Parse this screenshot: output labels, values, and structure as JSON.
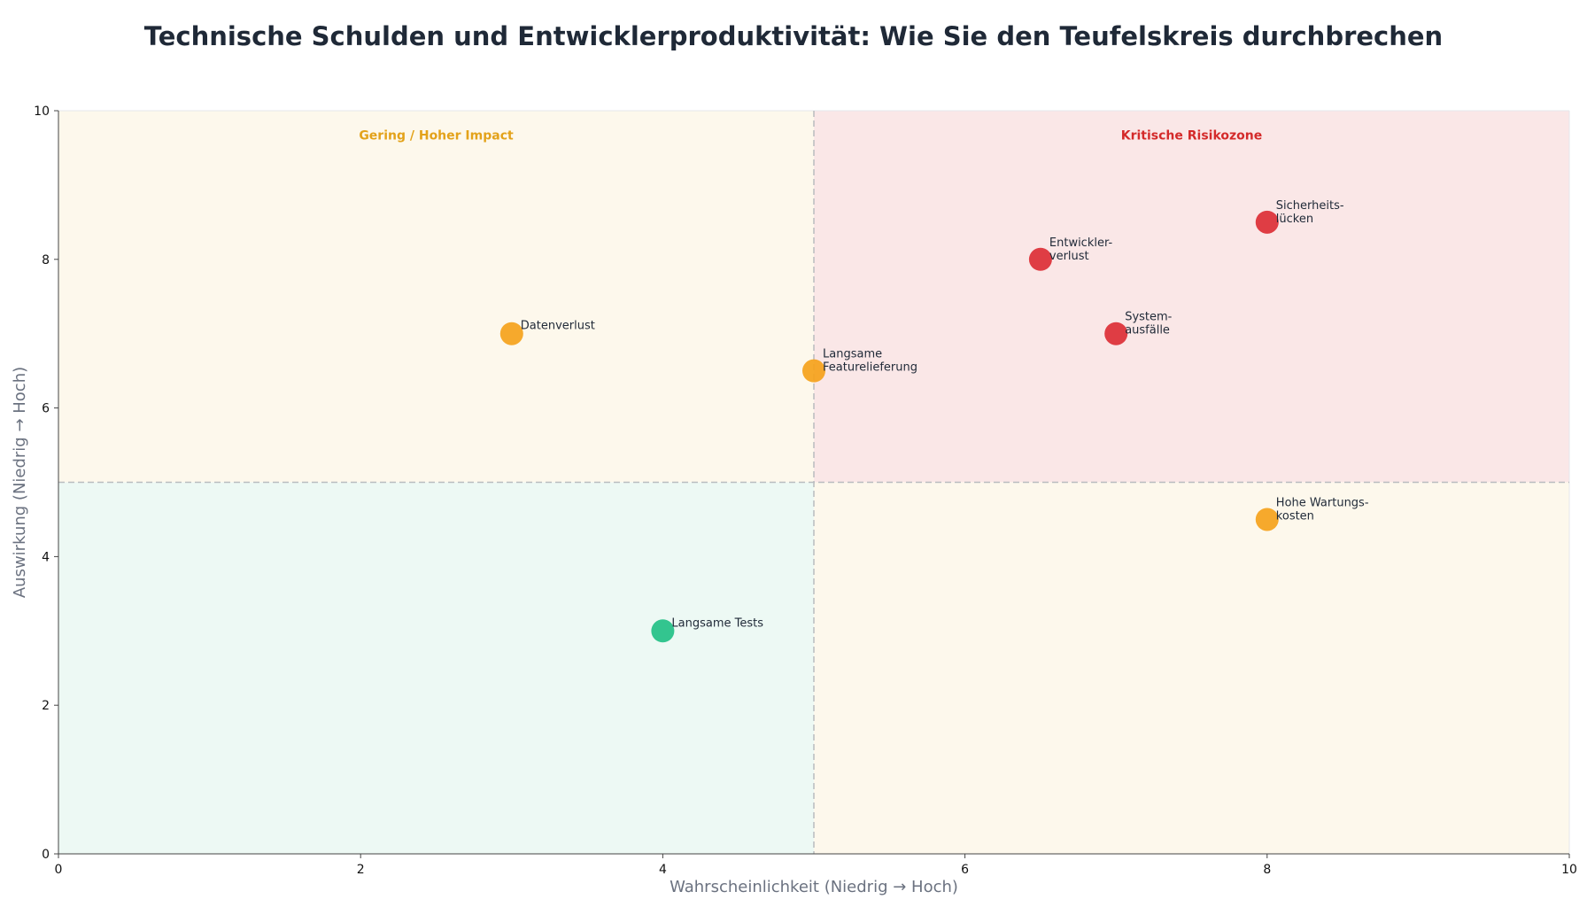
{
  "colors": {
    "critical": "#dc2f36",
    "medium": "#f5a21b",
    "low": "#23c085",
    "quad_critical_bg": "#fae7e7",
    "quad_medium_bg": "#fdf8ec",
    "quad_low_bg": "#edf9f4",
    "quad_label_medium": "#e3a21a",
    "quad_label_critical": "#d42a2a"
  },
  "chart_data": {
    "type": "scatter",
    "title": "Technische Schulden und Entwicklerproduktivität: Wie Sie den Teufelskreis durchbrechen",
    "xlabel": "Wahrscheinlichkeit (Niedrig → Hoch)",
    "ylabel": "Auswirkung (Niedrig → Hoch)",
    "xlim": [
      0,
      10
    ],
    "ylim": [
      0,
      10
    ],
    "xticks": [
      0,
      2,
      4,
      6,
      8,
      10
    ],
    "yticks": [
      0,
      2,
      4,
      6,
      8,
      10
    ],
    "threshold": {
      "x": 5,
      "y": 5
    },
    "grid": false,
    "quadrant_labels": [
      {
        "text": "Gering / Hoher Impact",
        "x": 2.5,
        "y": 9.67,
        "color_key": "quad_label_medium"
      },
      {
        "text": "Kritische Risikozone",
        "x": 7.5,
        "y": 9.67,
        "color_key": "quad_label_critical"
      }
    ],
    "points": [
      {
        "label_lines": [
          "Sicherheits-",
          "lücken"
        ],
        "x": 8.0,
        "y": 8.5,
        "level": "critical"
      },
      {
        "label_lines": [
          "Entwickler-",
          "verlust"
        ],
        "x": 6.5,
        "y": 8.0,
        "level": "critical"
      },
      {
        "label_lines": [
          "System-",
          "ausfälle"
        ],
        "x": 7.0,
        "y": 7.0,
        "level": "critical"
      },
      {
        "label_lines": [
          "Datenverlust"
        ],
        "x": 3.0,
        "y": 7.0,
        "level": "medium"
      },
      {
        "label_lines": [
          "Langsame",
          "Featurelieferung"
        ],
        "x": 5.0,
        "y": 6.5,
        "level": "medium"
      },
      {
        "label_lines": [
          "Hohe Wartungs-",
          "kosten"
        ],
        "x": 8.0,
        "y": 4.5,
        "level": "medium"
      },
      {
        "label_lines": [
          "Langsame Tests"
        ],
        "x": 4.0,
        "y": 3.0,
        "level": "low"
      }
    ]
  }
}
